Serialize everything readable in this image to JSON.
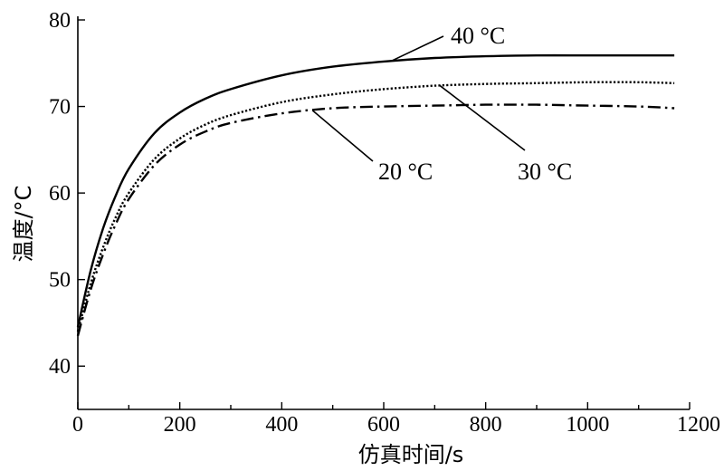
{
  "chart_data": {
    "type": "line",
    "xlabel": "仿真时间/s",
    "ylabel": "温度/°C",
    "xlim": [
      0,
      1200
    ],
    "ylim": [
      35,
      80
    ],
    "xticks": [
      0,
      200,
      400,
      600,
      800,
      1000,
      1200
    ],
    "yticks": [
      40,
      50,
      60,
      70,
      80
    ],
    "grid": false,
    "series": [
      {
        "name": "40 °C",
        "style": "solid",
        "x": [
          0,
          25,
          50,
          75,
          100,
          150,
          200,
          250,
          300,
          400,
          500,
          600,
          700,
          800,
          900,
          1000,
          1100,
          1170
        ],
        "y": [
          44.5,
          51.0,
          56.0,
          59.8,
          62.8,
          66.9,
          69.3,
          70.9,
          72.0,
          73.6,
          74.6,
          75.2,
          75.6,
          75.8,
          75.9,
          75.9,
          75.9,
          75.9
        ]
      },
      {
        "name": "30 °C",
        "style": "dotted",
        "x": [
          0,
          25,
          50,
          75,
          100,
          150,
          200,
          250,
          300,
          400,
          500,
          600,
          700,
          800,
          900,
          1000,
          1100,
          1170
        ],
        "y": [
          44.0,
          49.5,
          53.8,
          57.3,
          60.0,
          63.9,
          66.3,
          67.9,
          69.0,
          70.5,
          71.4,
          72.0,
          72.4,
          72.6,
          72.7,
          72.8,
          72.8,
          72.7
        ]
      },
      {
        "name": "20 °C",
        "style": "dashdot",
        "x": [
          0,
          25,
          50,
          75,
          100,
          150,
          200,
          250,
          300,
          400,
          500,
          600,
          700,
          800,
          900,
          1000,
          1100,
          1170
        ],
        "y": [
          43.5,
          48.8,
          53.0,
          56.5,
          59.3,
          63.2,
          65.6,
          67.1,
          68.1,
          69.2,
          69.8,
          70.0,
          70.1,
          70.2,
          70.2,
          70.1,
          70.0,
          69.8
        ]
      }
    ],
    "annotations": [
      {
        "label": "40 °C",
        "series": 0,
        "at_x": 615
      },
      {
        "label": "30 °C",
        "series": 1,
        "at_x": 710
      },
      {
        "label": "20 °C",
        "series": 2,
        "at_x": 460
      }
    ]
  }
}
